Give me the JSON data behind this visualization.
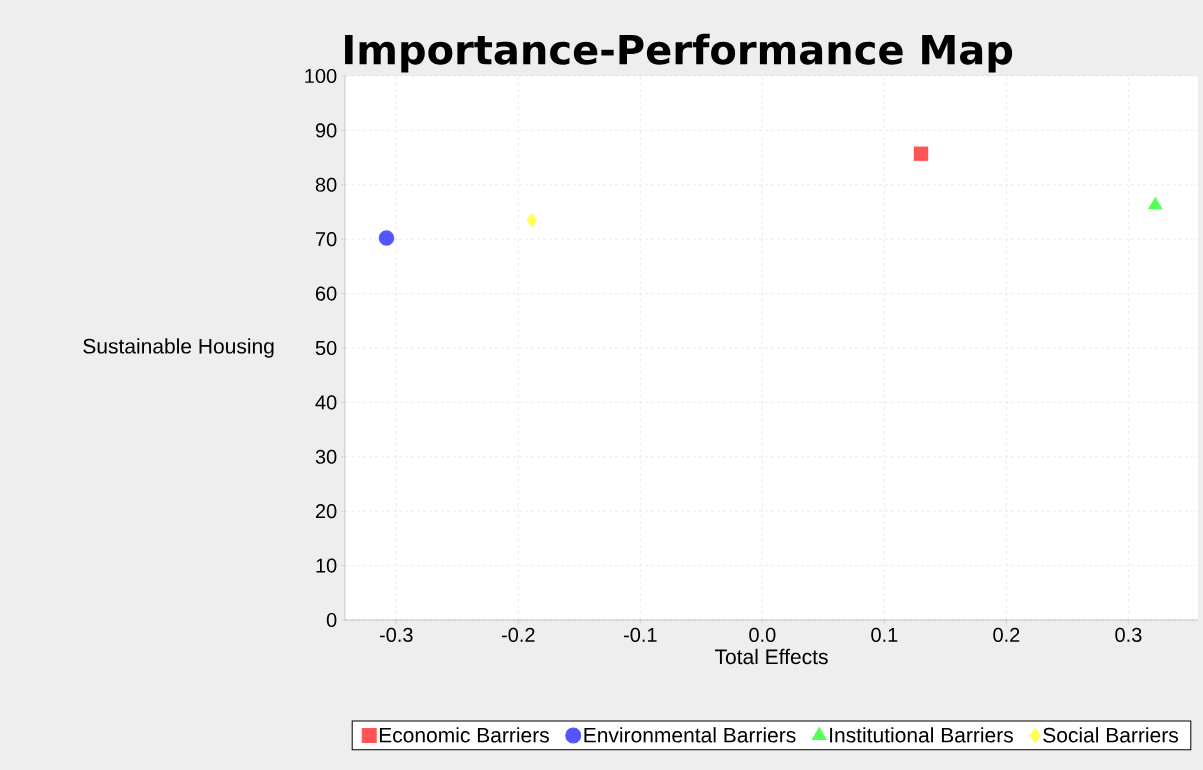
{
  "chart_data": {
    "type": "scatter",
    "title": "Importance-Performance Map",
    "xlabel": "Total Effects",
    "ylabel": "Sustainable Housing",
    "xlim": [
      -0.342,
      0.357
    ],
    "ylim": [
      0,
      100
    ],
    "xticks": [
      -0.3,
      -0.2,
      -0.1,
      {
        "value": 0,
        "label": "0.0"
      },
      0.1,
      0.2,
      0.3
    ],
    "yticks": [
      0,
      10,
      20,
      30,
      40,
      50,
      60,
      70,
      80,
      90,
      100
    ],
    "grid": true,
    "legend": "bottom",
    "series": [
      {
        "name": "Economic Barriers",
        "color": "#ff5555",
        "marker": "square",
        "x": [
          0.13
        ],
        "values": [
          85.7
        ]
      },
      {
        "name": "Environmental Barriers",
        "color": "#5555ff",
        "marker": "circle",
        "x": [
          -0.308
        ],
        "values": [
          70.2
        ]
      },
      {
        "name": "Institutional Barriers",
        "color": "#55ff55",
        "marker": "triangle",
        "x": [
          0.322
        ],
        "values": [
          76.3
        ]
      },
      {
        "name": "Social Barriers",
        "color": "#ffff55",
        "marker": "diamond",
        "x": [
          -0.189
        ],
        "values": [
          73.5
        ]
      }
    ]
  }
}
